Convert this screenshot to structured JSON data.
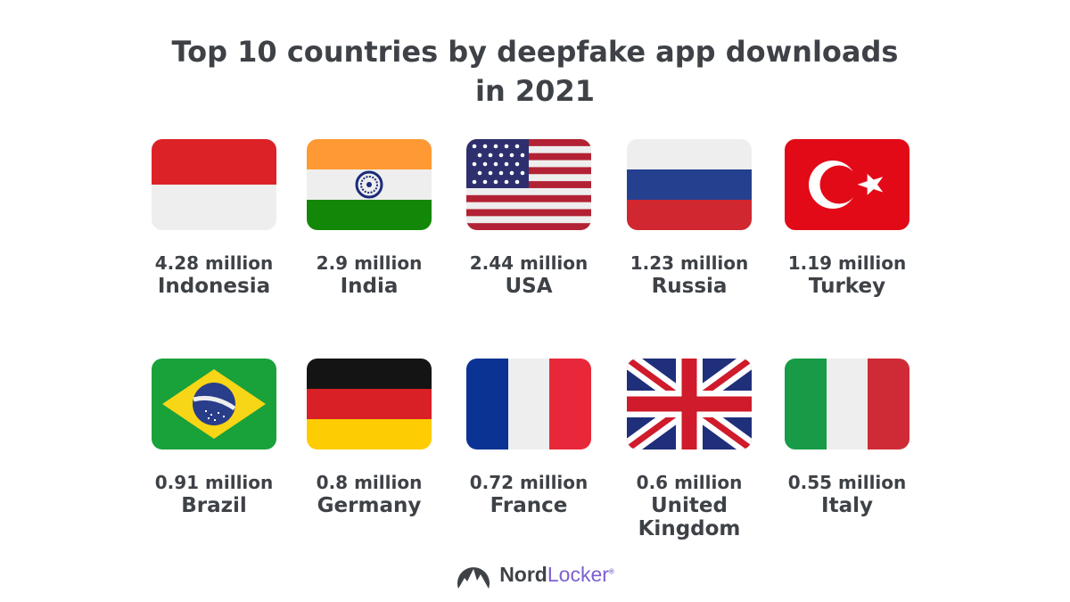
{
  "title": {
    "line1": "Top 10 countries by deepfake app downloads",
    "line2": "in 2021"
  },
  "countries": [
    {
      "value": "4.28 million",
      "name": "Indonesia",
      "flag_icon": "indonesia-flag-icon"
    },
    {
      "value": "2.9 million",
      "name": "India",
      "flag_icon": "india-flag-icon"
    },
    {
      "value": "2.44 million",
      "name": "USA",
      "flag_icon": "usa-flag-icon"
    },
    {
      "value": "1.23 million",
      "name": "Russia",
      "flag_icon": "russia-flag-icon"
    },
    {
      "value": "1.19 million",
      "name": "Turkey",
      "flag_icon": "turkey-flag-icon"
    },
    {
      "value": "0.91 million",
      "name": "Brazil",
      "flag_icon": "brazil-flag-icon"
    },
    {
      "value": "0.8 million",
      "name": "Germany",
      "flag_icon": "germany-flag-icon"
    },
    {
      "value": "0.72 million",
      "name": "France",
      "flag_icon": "france-flag-icon"
    },
    {
      "value": "0.6 million",
      "name": "United Kingdom",
      "flag_icon": "uk-flag-icon"
    },
    {
      "value": "0.55 million",
      "name": "Italy",
      "flag_icon": "italy-flag-icon"
    }
  ],
  "brand": {
    "name_part1": "Nord",
    "name_part2": "Locker",
    "trademark": "®",
    "logo_icon": "nordlocker-mountain-icon"
  },
  "colors": {
    "text": "#3e4247",
    "brand_accent": "#7d5fd0"
  }
}
